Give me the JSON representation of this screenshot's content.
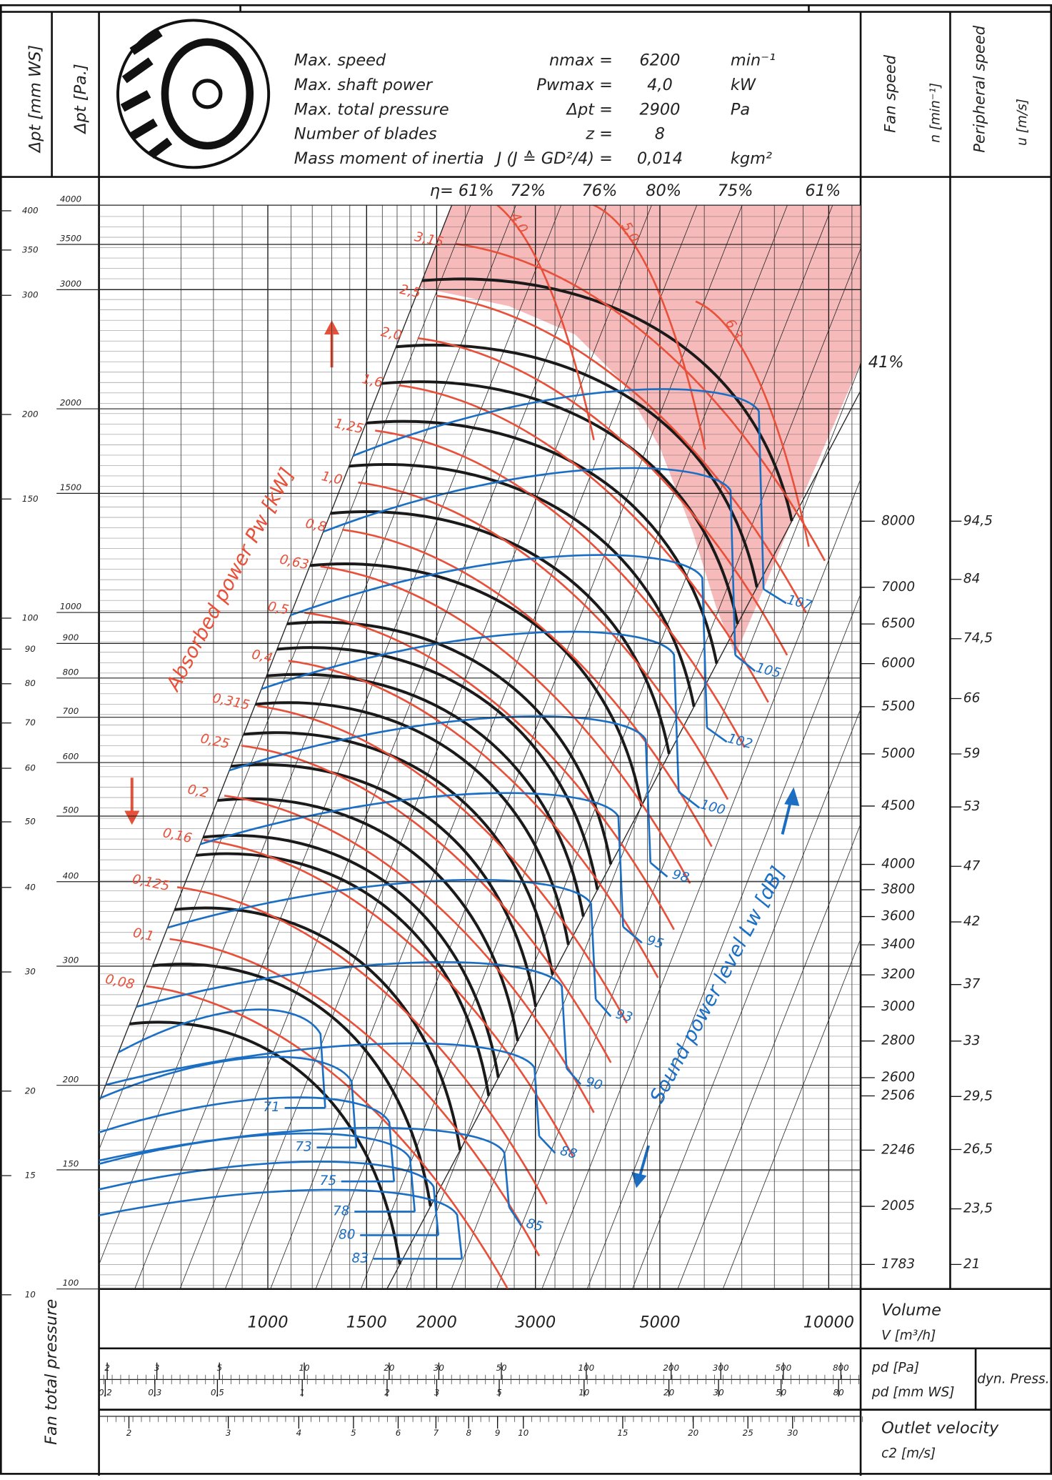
{
  "header": {
    "specs": [
      {
        "label": "Max. speed",
        "symbol": "nmax =",
        "value": "6200",
        "unit": "min⁻¹"
      },
      {
        "label": "Max. shaft power",
        "symbol": "Pwmax =",
        "value": "4,0",
        "unit": "kW"
      },
      {
        "label": "Max. total pressure",
        "symbol": "Δpt =",
        "value": "2900",
        "unit": "Pa"
      },
      {
        "label": "Number of blades",
        "symbol": "z =",
        "value": "8"
      },
      {
        "label": "Mass moment of inertia",
        "symbol": "J (J ≙ GD²/4) =",
        "value": "0,014",
        "unit": "kgm²"
      }
    ]
  },
  "chart_data": {
    "type": "line",
    "log_scale": true,
    "y_title": "Fan total pressure",
    "y_label": "Δpt [Pa.]",
    "y2_label": "Δpt [mm WS]",
    "ylim": [
      100,
      4000
    ],
    "yticks": [
      4000,
      3500,
      3000,
      2000,
      1500,
      1000,
      900,
      800,
      700,
      600,
      500,
      400,
      300,
      200,
      150,
      100
    ],
    "y2lim": [
      10.2,
      407.7
    ],
    "y2ticks": [
      400,
      350,
      300,
      200,
      150,
      100,
      90,
      80,
      70,
      60,
      50,
      40,
      30,
      20,
      15,
      10
    ],
    "xlim": [
      500,
      11400
    ],
    "xticks": [
      1000,
      1500,
      2000,
      3000,
      5000,
      10000
    ],
    "x_label": "Volume",
    "x_unit": "V [m³/h]",
    "efficiency_labels": [
      "η= 61%",
      "72%",
      "76%",
      "80%",
      "75%",
      "61%",
      "41%"
    ],
    "speed_label": "Fan speed",
    "speed_unit": "n [min⁻¹]",
    "speed_ticks": [
      8000,
      7000,
      6500,
      6000,
      5500,
      5000,
      4500,
      4000,
      3800,
      3600,
      3400,
      3200,
      3000,
      2800,
      2600,
      2506,
      2246,
      2005,
      1783
    ],
    "peripheral_label": "Peripheral speed",
    "peripheral_unit": "u [m/s]",
    "peripheral_ticks": [
      {
        "value": 94.5,
        "label": "94,5"
      },
      84,
      {
        "value": 74.5,
        "label": "74,5"
      },
      66,
      59,
      53,
      47,
      42,
      37,
      33,
      {
        "value": 29.5,
        "label": "29,5"
      },
      {
        "value": 26.5,
        "label": "26,5"
      },
      {
        "value": 23.5,
        "label": "23,5"
      },
      21
    ],
    "power_label": "Absorbed power Pw [kW]",
    "power_curves": [
      {
        "value": 3.15,
        "label": "3,15"
      },
      {
        "value": 2.5,
        "label": "2,5"
      },
      {
        "value": 2.0,
        "label": "2,0"
      },
      {
        "value": 1.6,
        "label": "1,6"
      },
      {
        "value": 1.25,
        "label": "1,25"
      },
      {
        "value": 1.0,
        "label": "1,0"
      },
      {
        "value": 0.8,
        "label": "0,8"
      },
      {
        "value": 0.63,
        "label": "0,63"
      },
      {
        "value": 0.5,
        "label": "0,5"
      },
      {
        "value": 0.4,
        "label": "0,4"
      },
      {
        "value": 0.315,
        "label": "0,315"
      },
      {
        "value": 0.25,
        "label": "0,25"
      },
      {
        "value": 0.2,
        "label": "0,2"
      },
      {
        "value": 0.16,
        "label": "0,16"
      },
      {
        "value": 0.125,
        "label": "0,125"
      },
      {
        "value": 0.1,
        "label": "0,1"
      },
      {
        "value": 0.08,
        "label": "0,08"
      },
      {
        "value": 4.0,
        "label": "4,0"
      },
      {
        "value": 5.0,
        "label": "5,0"
      },
      {
        "value": 6.3,
        "label": "6,3"
      }
    ],
    "sound_label": "Sound power level Lw [dB]",
    "sound_curves": [
      71,
      73,
      75,
      78,
      80,
      83,
      85,
      88,
      90,
      93,
      95,
      98,
      100,
      102,
      105,
      107
    ],
    "pd_label": "pd [Pa]",
    "pd_mm_label": "pd [mm WS]",
    "pd_title": "dyn. Press.",
    "pd_lim": [
      1.87,
      940
    ],
    "pd_ticks": [
      2,
      3,
      5,
      10,
      20,
      30,
      50,
      100,
      200,
      300,
      500,
      800
    ],
    "pd_mm_lim": [
      0.19,
      95.8
    ],
    "pd_mm_ticks": [
      {
        "value": 0.2,
        "label": "0,2"
      },
      {
        "value": 0.3,
        "label": "0,3"
      },
      {
        "value": 0.5,
        "label": "0,5"
      },
      1,
      2,
      3,
      5,
      10,
      20,
      30,
      50,
      80
    ],
    "velocity_label": "Outlet velocity",
    "velocity_unit": "c2 [m/s]",
    "velocity_lim": [
      1.77,
      39.6
    ],
    "velocity_ticks": [
      2,
      3,
      4,
      5,
      6,
      7,
      8,
      9,
      10,
      15,
      20,
      25,
      30
    ]
  }
}
